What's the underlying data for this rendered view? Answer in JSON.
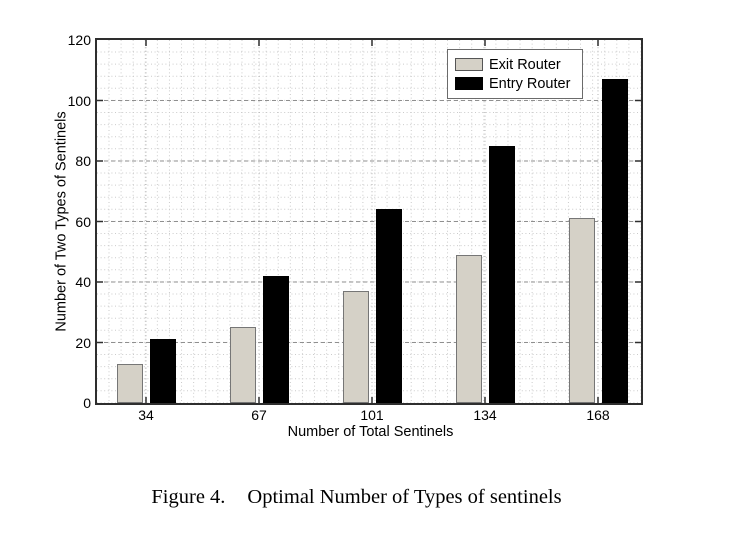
{
  "chart_data": {
    "type": "bar",
    "categories": [
      "34",
      "67",
      "101",
      "134",
      "168"
    ],
    "series": [
      {
        "name": "Exit Router",
        "values": [
          13,
          25,
          37,
          49,
          61
        ],
        "color": "#d5d1c7",
        "edge": "#767676"
      },
      {
        "name": "Entry Router",
        "values": [
          21,
          42,
          64,
          85,
          107
        ],
        "color": "#000000",
        "edge": "#000000"
      }
    ],
    "xlabel": "Number of Total Sentinels",
    "ylabel": "Number of Two Types of Sentinels",
    "ylim": [
      0,
      120
    ],
    "ytick_step": 20,
    "grid": "major dashed + fine dotted minor grid",
    "legend_position": "top-right inside plot"
  },
  "colors": {
    "axis": "#2e2e2e",
    "major_grid": "#8f8f8f",
    "minor_grid": "#cbcbcb",
    "category_grid": "#b3b3b3",
    "legend_border": "#6b6b6b"
  },
  "caption": {
    "figure_label": "Figure 4.",
    "text": "Optimal Number of Types of sentinels"
  }
}
